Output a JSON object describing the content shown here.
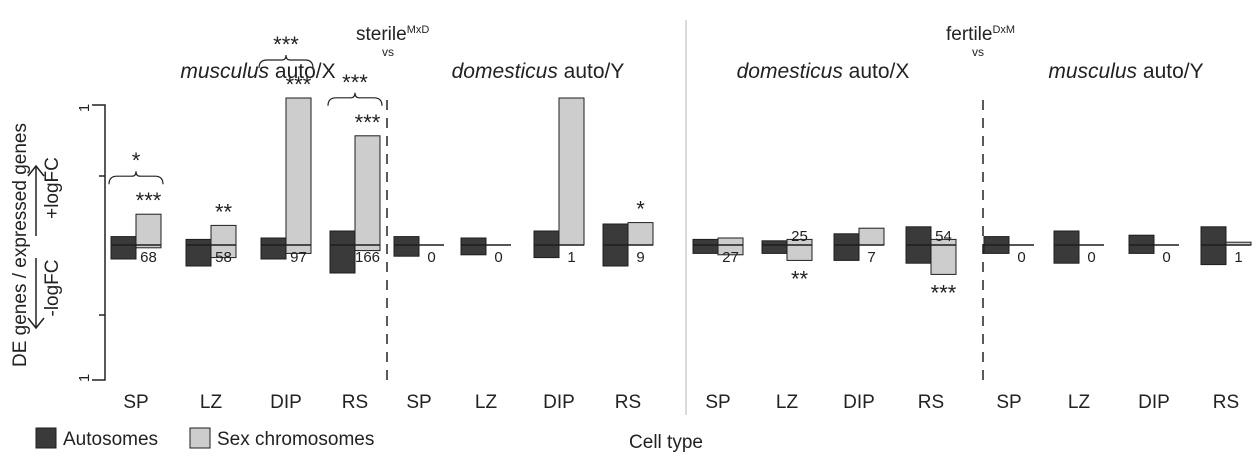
{
  "chart_data": {
    "type": "bar",
    "ylabel": "DE genes / expressed genes",
    "xlabel": "Cell type",
    "y_tick_labels": [
      "1",
      "1"
    ],
    "ylim": [
      -1,
      1
    ],
    "up_label": "+logFC",
    "down_label": "-logFC",
    "legend": {
      "position": "bottom-left",
      "items": [
        {
          "key": "auto",
          "label": "Autosomes",
          "color": "#3a3a3a"
        },
        {
          "key": "sex",
          "label": "Sex chromosomes",
          "color": "#cdcdcd"
        }
      ]
    },
    "groups": [
      {
        "title": "sterile",
        "title_sup": "MxD",
        "vs": "vs",
        "subpanels": [
          {
            "title_italic": "musculus",
            "title_rest": " auto/X",
            "categories": [
              "SP",
              "LZ",
              "DIP",
              "RS"
            ],
            "autosomes": [
              {
                "up": 0.06,
                "down": -0.1
              },
              {
                "up": 0.04,
                "down": -0.15
              },
              {
                "up": 0.05,
                "down": -0.1
              },
              {
                "up": 0.1,
                "down": -0.2
              }
            ],
            "sex": [
              {
                "up": 0.22,
                "down": -0.02
              },
              {
                "up": 0.14,
                "down": -0.09
              },
              {
                "up": 1.05,
                "down": -0.06
              },
              {
                "up": 0.78,
                "down": -0.04
              }
            ],
            "counts": [
              "68",
              "58",
              "97",
              "166"
            ],
            "sig_sex": [
              "***",
              "**",
              "***",
              "***"
            ],
            "sig_sex_pos": [
              "above",
              "above",
              "above",
              "above"
            ],
            "sig_bracket": [
              "*",
              "",
              "***",
              "***"
            ]
          },
          {
            "title_italic": "domesticus",
            "title_rest": " auto/Y",
            "categories": [
              "SP",
              "LZ",
              "DIP",
              "RS"
            ],
            "autosomes": [
              {
                "up": 0.06,
                "down": -0.08
              },
              {
                "up": 0.05,
                "down": -0.07
              },
              {
                "up": 0.1,
                "down": -0.09
              },
              {
                "up": 0.15,
                "down": -0.15
              }
            ],
            "sex": [
              {
                "up": 0.0,
                "down": 0.0
              },
              {
                "up": 0.0,
                "down": 0.0
              },
              {
                "up": 1.05,
                "down": 0.0
              },
              {
                "up": 0.16,
                "down": 0.0
              }
            ],
            "counts": [
              "0",
              "0",
              "1",
              "9"
            ],
            "sig_sex": [
              "",
              "",
              "",
              "*"
            ],
            "sig_sex_pos": [
              "",
              "",
              "",
              "above"
            ],
            "sig_bracket": [
              "",
              "",
              "",
              ""
            ]
          }
        ]
      },
      {
        "title": "fertile",
        "title_sup": "DxM",
        "vs": "vs",
        "subpanels": [
          {
            "title_italic": "domesticus",
            "title_rest": " auto/X",
            "categories": [
              "SP",
              "LZ",
              "DIP",
              "RS"
            ],
            "autosomes": [
              {
                "up": 0.04,
                "down": -0.06
              },
              {
                "up": 0.03,
                "down": -0.06
              },
              {
                "up": 0.08,
                "down": -0.11
              },
              {
                "up": 0.13,
                "down": -0.13
              }
            ],
            "sex": [
              {
                "up": 0.05,
                "down": -0.07
              },
              {
                "up": 0.04,
                "down": -0.11
              },
              {
                "up": 0.12,
                "down": 0.0
              },
              {
                "up": 0.04,
                "down": -0.21
              }
            ],
            "counts": [
              "27",
              "25",
              "7",
              "54"
            ],
            "sig_sex": [
              "",
              "**",
              "",
              "***"
            ],
            "sig_sex_pos": [
              "",
              "below",
              "",
              "below"
            ],
            "sig_bracket": [
              "",
              "",
              "",
              ""
            ]
          },
          {
            "title_italic": "musculus",
            "title_rest": " auto/Y",
            "categories": [
              "SP",
              "LZ",
              "DIP",
              "RS"
            ],
            "autosomes": [
              {
                "up": 0.06,
                "down": -0.06
              },
              {
                "up": 0.1,
                "down": -0.13
              },
              {
                "up": 0.07,
                "down": -0.06
              },
              {
                "up": 0.13,
                "down": -0.14
              }
            ],
            "sex": [
              {
                "up": 0.0,
                "down": 0.0
              },
              {
                "up": 0.0,
                "down": 0.0
              },
              {
                "up": 0.0,
                "down": 0.0
              },
              {
                "up": 0.02,
                "down": 0.0
              }
            ],
            "counts": [
              "0",
              "0",
              "0",
              "1"
            ],
            "sig_sex": [
              "",
              "",
              "",
              ""
            ],
            "sig_sex_pos": [
              "",
              "",
              "",
              ""
            ],
            "sig_bracket": [
              "",
              "",
              "",
              ""
            ]
          }
        ]
      }
    ]
  }
}
